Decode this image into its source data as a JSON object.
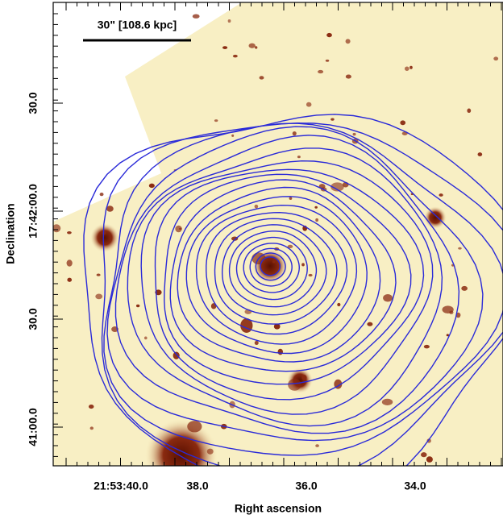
{
  "scale_bar": {
    "label": "30\" [108.6 kpc]"
  },
  "x_axis": {
    "title": "Right ascension",
    "tick_labels": [
      "21:53:40.0",
      "38.0",
      "36.0",
      "34.0"
    ]
  },
  "y_axis": {
    "title": "Declination",
    "tick_labels": [
      "30.0",
      "17:42:00.0",
      "30.0",
      "41:00.0"
    ]
  }
}
